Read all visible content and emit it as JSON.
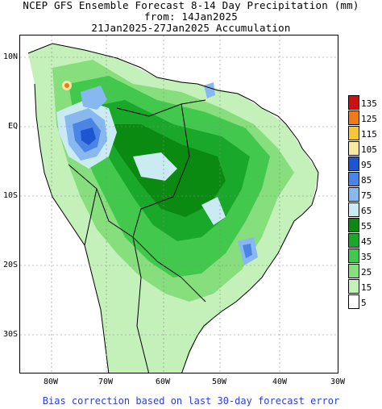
{
  "title": {
    "line1": "NCEP GFS Ensemble Forecast 8-14 Day Precipitation (mm)",
    "line2": "from: 14Jan2025",
    "line3": "21Jan2025-27Jan2025 Accumulation"
  },
  "axes": {
    "lat_labels": [
      "10N",
      "EQ",
      "10S",
      "20S",
      "30S"
    ],
    "lon_labels": [
      "80W",
      "70W",
      "60W",
      "50W",
      "40W",
      "30W"
    ]
  },
  "legend": {
    "levels": [
      {
        "label": "135",
        "color": "#d01010"
      },
      {
        "label": "125",
        "color": "#f07a1a"
      },
      {
        "label": "115",
        "color": "#f5c53a"
      },
      {
        "label": "105",
        "color": "#fbe9a0"
      },
      {
        "label": "95",
        "color": "#1e55d0"
      },
      {
        "label": "85",
        "color": "#4a84e6"
      },
      {
        "label": "75",
        "color": "#88b8f0"
      },
      {
        "label": "65",
        "color": "#cbebf3"
      },
      {
        "label": "55",
        "color": "#0a8a10"
      },
      {
        "label": "45",
        "color": "#1aa82a"
      },
      {
        "label": "35",
        "color": "#43c84e"
      },
      {
        "label": "25",
        "color": "#86de7c"
      },
      {
        "label": "15",
        "color": "#c4f0ba"
      },
      {
        "label": "5",
        "color": "#ffffff"
      }
    ]
  },
  "footer": "Bias correction based on last 30-day forecast error"
}
